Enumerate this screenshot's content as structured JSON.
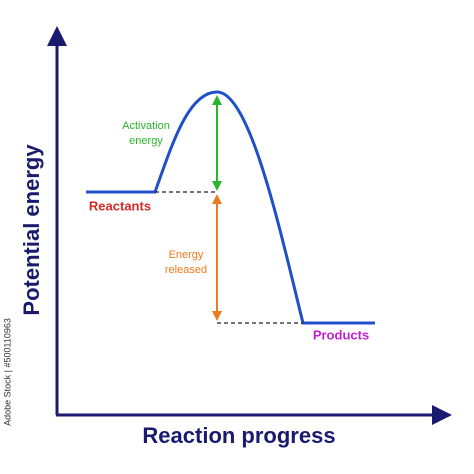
{
  "axes": {
    "x_label": "Reaction progress",
    "y_label": "Potential energy"
  },
  "labels": {
    "reactants": "Reactants",
    "products": "Products",
    "activation": [
      "Activation",
      "energy"
    ],
    "released": [
      "Energy",
      "released"
    ]
  },
  "stock_id": "Adobe Stock | #500110963"
}
